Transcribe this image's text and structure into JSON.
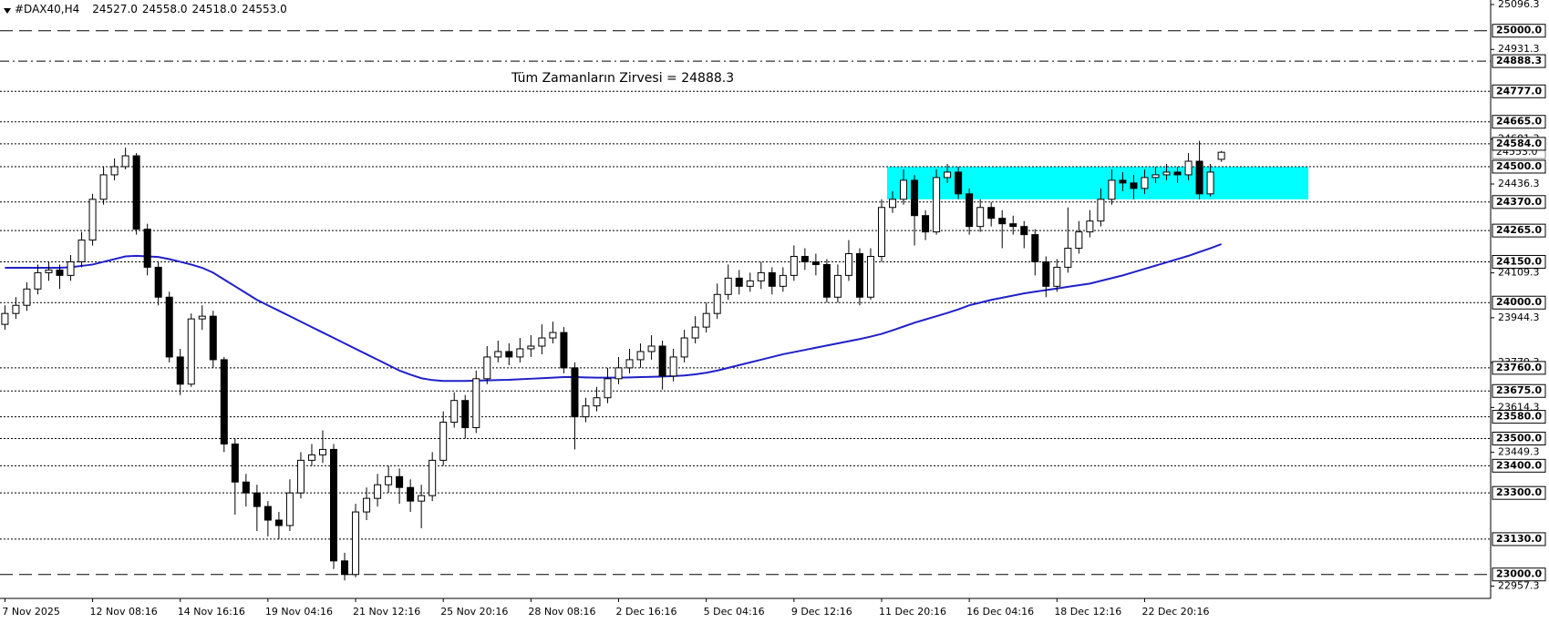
{
  "chart_data": {
    "type": "candlestick",
    "title": "#DAX40,H4",
    "ohlc": [
      {
        "value": 24527,
        "label": "24527.0"
      },
      {
        "value": 24558,
        "label": "24558.0"
      },
      {
        "value": 24518,
        "label": "24518.0"
      },
      {
        "value": 24553,
        "label": "24553.0"
      }
    ],
    "annotation": "Tüm Zamanların Zirvesi = 24888.3",
    "annotation_color": "#d0208f",
    "categories": [
      "7 Nov 2025",
      null,
      null,
      null,
      null,
      null,
      null,
      null,
      "12 Nov 08:16",
      null,
      null,
      null,
      null,
      null,
      null,
      null,
      "14 Nov 16:16",
      null,
      null,
      null,
      null,
      null,
      null,
      null,
      "19 Nov 04:16",
      null,
      null,
      null,
      null,
      null,
      null,
      null,
      "21 Nov 12:16",
      null,
      null,
      null,
      null,
      null,
      null,
      null,
      "25 Nov 20:16",
      null,
      null,
      null,
      null,
      null,
      null,
      null,
      "28 Nov 08:16",
      null,
      null,
      null,
      null,
      null,
      null,
      null,
      "2 Dec 16:16",
      null,
      null,
      null,
      null,
      null,
      null,
      null,
      "5 Dec 04:16",
      null,
      null,
      null,
      null,
      null,
      null,
      null,
      "9 Dec 12:16",
      null,
      null,
      null,
      null,
      null,
      null,
      null,
      "11 Dec 20:16",
      null,
      null,
      null,
      null,
      null,
      null,
      null,
      "16 Dec 04:16",
      null,
      null,
      null,
      null,
      null,
      null,
      null,
      "18 Dec 12:16",
      null,
      null,
      null,
      null,
      null,
      null,
      null,
      "22 Dec 20:16",
      null,
      null,
      null,
      null,
      null,
      null,
      null
    ],
    "open": [
      23920,
      23960,
      23990,
      24050,
      24110,
      24120,
      24100,
      24150,
      24230,
      24380,
      24470,
      24500,
      24540,
      24270,
      24130,
      24020,
      23800,
      23700,
      23940,
      23950,
      23790,
      23480,
      23340,
      23300,
      23250,
      23200,
      23180,
      23300,
      23420,
      23440,
      23460,
      23050,
      23000,
      23230,
      23280,
      23330,
      23360,
      23320,
      23270,
      23290,
      23420,
      23560,
      23640,
      23540,
      23720,
      23800,
      23820,
      23800,
      23830,
      23840,
      23870,
      23890,
      23760,
      23580,
      23620,
      23650,
      23720,
      23760,
      23790,
      23820,
      23840,
      23730,
      23800,
      23870,
      23910,
      23960,
      24030,
      24090,
      24060,
      24080,
      24110,
      24060,
      24100,
      24170,
      24150,
      24140,
      24020,
      24100,
      24180,
      24020,
      24170,
      24350,
      24380,
      24450,
      24320,
      24260,
      24460,
      24480,
      24400,
      24280,
      24350,
      24310,
      24290,
      24280,
      24250,
      24150,
      24060,
      24130,
      24200,
      24260,
      24300,
      24380,
      24450,
      24440,
      24420,
      24460,
      24470,
      24480,
      24470,
      24520,
      24400,
      24527
    ],
    "high": [
      23990,
      24020,
      24075,
      24140,
      24150,
      24140,
      24175,
      24260,
      24400,
      24500,
      24530,
      24570,
      24550,
      24290,
      24150,
      24040,
      23830,
      23960,
      23990,
      23970,
      23800,
      23500,
      23370,
      23330,
      23270,
      23230,
      23350,
      23450,
      23480,
      23530,
      23480,
      23080,
      23260,
      23320,
      23370,
      23400,
      23390,
      23350,
      23330,
      23450,
      23600,
      23670,
      23660,
      23750,
      23840,
      23860,
      23850,
      23870,
      23880,
      23920,
      23930,
      23910,
      23780,
      23650,
      23690,
      23760,
      23800,
      23830,
      23850,
      23880,
      23860,
      23830,
      23900,
      23950,
      24000,
      24070,
      24140,
      24120,
      24110,
      24150,
      24130,
      24130,
      24210,
      24200,
      24180,
      24160,
      24140,
      24230,
      24200,
      24200,
      24380,
      24410,
      24490,
      24470,
      24340,
      24490,
      24510,
      24500,
      24420,
      24380,
      24370,
      24340,
      24320,
      24300,
      24270,
      24170,
      24160,
      24350,
      24300,
      24340,
      24420,
      24490,
      24480,
      24470,
      24490,
      24500,
      24510,
      24500,
      24550,
      24595,
      24510,
      24558
    ],
    "low": [
      23900,
      23940,
      23970,
      24030,
      24080,
      24050,
      24080,
      24130,
      24210,
      24360,
      24450,
      24490,
      24250,
      24100,
      23990,
      23780,
      23660,
      23690,
      23900,
      23760,
      23450,
      23220,
      23250,
      23160,
      23140,
      23130,
      23160,
      23280,
      23400,
      23410,
      23020,
      22978,
      22990,
      23200,
      23250,
      23300,
      23260,
      23230,
      23170,
      23270,
      23400,
      23540,
      23500,
      23520,
      23700,
      23780,
      23770,
      23780,
      23800,
      23810,
      23850,
      23740,
      23460,
      23560,
      23600,
      23630,
      23700,
      23740,
      23760,
      23790,
      23680,
      23710,
      23780,
      23850,
      23890,
      23940,
      24010,
      24030,
      24040,
      24050,
      24030,
      24040,
      24080,
      24120,
      24100,
      24000,
      24000,
      24080,
      23990,
      24010,
      24150,
      24330,
      24360,
      24210,
      24230,
      24250,
      24440,
      24380,
      24250,
      24260,
      24280,
      24200,
      24250,
      24200,
      24100,
      24020,
      24040,
      24110,
      24180,
      24240,
      24280,
      24360,
      24410,
      24380,
      24400,
      24440,
      24450,
      24440,
      24450,
      24380,
      24390,
      24518
    ],
    "close": [
      23960,
      23990,
      24050,
      24110,
      24120,
      24100,
      24150,
      24230,
      24380,
      24470,
      24500,
      24540,
      24270,
      24130,
      24020,
      23800,
      23700,
      23940,
      23950,
      23790,
      23480,
      23340,
      23300,
      23250,
      23200,
      23180,
      23300,
      23420,
      23440,
      23460,
      23050,
      23000,
      23230,
      23280,
      23330,
      23360,
      23320,
      23270,
      23290,
      23420,
      23560,
      23640,
      23540,
      23720,
      23800,
      23820,
      23800,
      23830,
      23840,
      23870,
      23890,
      23760,
      23580,
      23620,
      23650,
      23720,
      23760,
      23790,
      23820,
      23840,
      23730,
      23800,
      23870,
      23910,
      23960,
      24030,
      24090,
      24060,
      24080,
      24110,
      24060,
      24100,
      24170,
      24150,
      24140,
      24020,
      24100,
      24180,
      24020,
      24170,
      24350,
      24380,
      24450,
      24320,
      24260,
      24460,
      24480,
      24400,
      24280,
      24350,
      24310,
      24290,
      24280,
      24250,
      24150,
      24060,
      24130,
      24200,
      24260,
      24300,
      24380,
      24450,
      24440,
      24420,
      24460,
      24470,
      24480,
      24470,
      24520,
      24400,
      24480,
      24553
    ],
    "ma": {
      "color": "#2020c8",
      "values": [
        24128,
        24128,
        24128,
        24128,
        24128,
        24128,
        24130,
        24135,
        24140,
        24150,
        24160,
        24170,
        24172,
        24170,
        24168,
        24160,
        24150,
        24140,
        24128,
        24110,
        24085,
        24060,
        24035,
        24010,
        23990,
        23970,
        23950,
        23930,
        23910,
        23890,
        23870,
        23850,
        23830,
        23810,
        23790,
        23770,
        23750,
        23735,
        23722,
        23715,
        23712,
        23712,
        23712,
        23713,
        23714,
        23715,
        23716,
        23718,
        23720,
        23722,
        23724,
        23726,
        23726,
        23725,
        23724,
        23724,
        23724,
        23725,
        23726,
        23727,
        23728,
        23730,
        23732,
        23736,
        23742,
        23750,
        23760,
        23770,
        23780,
        23790,
        23800,
        23810,
        23818,
        23826,
        23834,
        23842,
        23850,
        23858,
        23866,
        23875,
        23885,
        23898,
        23912,
        23926,
        23938,
        23950,
        23962,
        23975,
        23990,
        24000,
        24010,
        24018,
        24026,
        24034,
        24040,
        24046,
        24052,
        24058,
        24064,
        24070,
        24080,
        24090,
        24100,
        24112,
        24124,
        24136,
        24148,
        24160,
        24172,
        24186,
        24200,
        24215
      ]
    },
    "zone": {
      "from": 24380,
      "to": 24500,
      "color": "#00ffff"
    },
    "ylim": [
      22912,
      25113
    ],
    "yticks": [
      25096.3,
      24931.3,
      24601.3,
      24436.3,
      24109.3,
      23944.3,
      23779.3,
      23614.3,
      23449.3,
      22957.3
    ],
    "levels": [
      {
        "value": 25000,
        "label": "25000.0",
        "style": "dashed"
      },
      {
        "value": 24888.3,
        "style": "dashdot"
      },
      {
        "value": 24777,
        "label": "24777.0",
        "style": "dotted"
      },
      {
        "value": 24665,
        "label": "24665.0",
        "style": "dotted"
      },
      {
        "value": 24584,
        "label": "24584.0",
        "style": "dotted"
      },
      {
        "value": 24500,
        "label": "24500.0",
        "style": "dotted"
      },
      {
        "value": 24370,
        "label": "24370.0",
        "style": "dotted"
      },
      {
        "value": 24265,
        "label": "24265.0",
        "style": "dotted"
      },
      {
        "value": 24150,
        "label": "24150.0",
        "style": "dotted"
      },
      {
        "value": 24000,
        "label": "24000.0",
        "style": "dotted"
      },
      {
        "value": 23760,
        "label": "23760.0",
        "style": "dotted"
      },
      {
        "value": 23675,
        "label": "23675.0",
        "style": "dotted"
      },
      {
        "value": 23580,
        "label": "23580.0",
        "style": "dotted"
      },
      {
        "value": 23500,
        "label": "23500.0",
        "style": "dotted"
      },
      {
        "value": 23400,
        "label": "23400.0",
        "style": "dotted"
      },
      {
        "value": 23300,
        "label": "23300.0",
        "style": "dotted"
      },
      {
        "value": 23130,
        "label": "23130.0",
        "style": "dotted"
      },
      {
        "value": 23000,
        "label": "23000.0",
        "style": "dashed"
      }
    ],
    "up_color": "#ffffff",
    "down_color": "#000000"
  }
}
